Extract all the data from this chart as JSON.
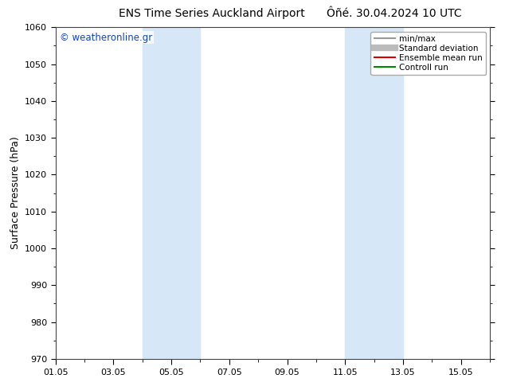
{
  "title_left": "ENS Time Series Auckland Airport",
  "title_right": "Ôñé. 30.04.2024 10 UTC",
  "ylabel": "Surface Pressure (hPa)",
  "ylim": [
    970,
    1060
  ],
  "yticks": [
    970,
    980,
    990,
    1000,
    1010,
    1020,
    1030,
    1040,
    1050,
    1060
  ],
  "xlim": [
    0,
    15
  ],
  "xtick_labels": [
    "01.05",
    "03.05",
    "05.05",
    "07.05",
    "09.05",
    "11.05",
    "13.05",
    "15.05"
  ],
  "xtick_positions": [
    0,
    2,
    4,
    6,
    8,
    10,
    12,
    14
  ],
  "shade_bands": [
    {
      "x_start": 3.0,
      "x_end": 5.0,
      "color": "#d6e8f7"
    },
    {
      "x_start": 10.0,
      "x_end": 12.0,
      "color": "#d6e8f7"
    }
  ],
  "watermark": "© weatheronline.gr",
  "watermark_color": "#1144cc",
  "background_color": "#ffffff",
  "legend_items": [
    {
      "label": "min/max",
      "color": "#999999",
      "lw": 1.5
    },
    {
      "label": "Standard deviation",
      "color": "#bbbbbb",
      "lw": 6
    },
    {
      "label": "Ensemble mean run",
      "color": "#dd0000",
      "lw": 1.5
    },
    {
      "label": "Controll run",
      "color": "#008800",
      "lw": 1.5
    }
  ],
  "title_fontsize": 10,
  "tick_fontsize": 8,
  "ylabel_fontsize": 9,
  "legend_fontsize": 7.5
}
